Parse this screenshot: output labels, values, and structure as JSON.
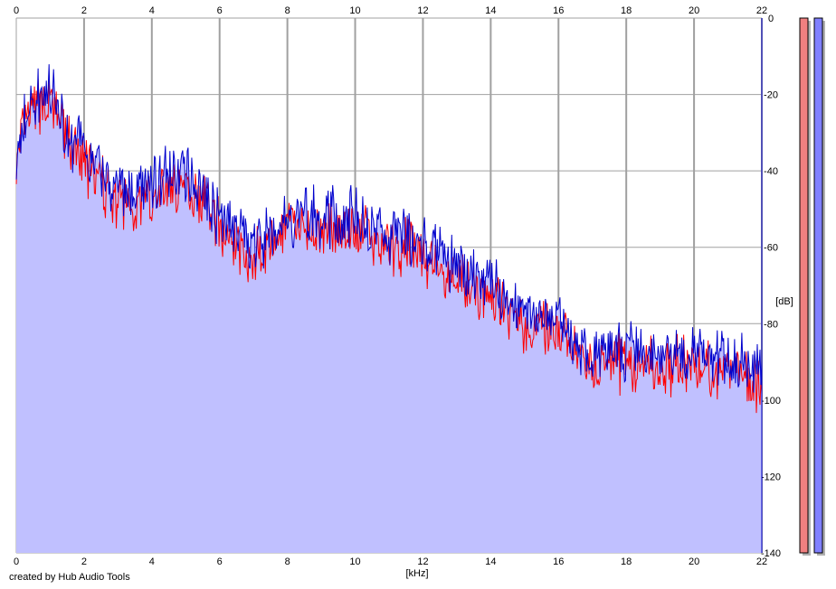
{
  "chart_data": {
    "type": "area",
    "x_unit_label": "[kHz]",
    "y_unit_label": "[dB]",
    "xlim": [
      0,
      22
    ],
    "ylim": [
      -140,
      0
    ],
    "x_ticks": [
      0,
      2,
      4,
      6,
      8,
      10,
      12,
      14,
      16,
      18,
      20,
      22
    ],
    "y_ticks": [
      0,
      -20,
      -40,
      -60,
      -80,
      -100,
      -120,
      -140
    ],
    "grid": true,
    "series": [
      {
        "color": "#ff0000",
        "x": [
          0,
          0.25,
          0.5,
          0.75,
          1,
          1.25,
          1.5,
          1.75,
          2,
          2.5,
          3,
          3.5,
          4,
          4.5,
          5,
          5.5,
          6,
          6.5,
          7,
          7.5,
          8,
          8.5,
          9,
          9.5,
          10,
          10.5,
          11,
          11.5,
          12,
          12.5,
          13,
          13.5,
          14,
          14.5,
          15,
          15.5,
          16,
          16.5,
          17,
          17.5,
          18,
          18.5,
          19,
          19.5,
          20,
          20.5,
          21,
          21.5,
          22
        ],
        "values": [
          -40,
          -28,
          -24,
          -22,
          -23,
          -26,
          -31,
          -36,
          -38,
          -43,
          -48,
          -49,
          -47,
          -44,
          -44,
          -47,
          -54,
          -59,
          -63,
          -60,
          -55,
          -55,
          -56,
          -55,
          -55,
          -58,
          -61,
          -60,
          -62,
          -66,
          -68,
          -70,
          -73,
          -76,
          -80,
          -82,
          -83,
          -87,
          -91,
          -91,
          -90,
          -91,
          -91,
          -91,
          -91,
          -92,
          -92,
          -93,
          -98
        ]
      },
      {
        "color": "#0000cc",
        "x": [
          0,
          0.25,
          0.5,
          0.75,
          1,
          1.25,
          1.5,
          1.75,
          2,
          2.5,
          3,
          3.5,
          4,
          4.5,
          5,
          5.5,
          6,
          6.5,
          7,
          7.5,
          8,
          8.5,
          9,
          9.5,
          10,
          10.5,
          11,
          11.5,
          12,
          12.5,
          13,
          13.5,
          14,
          14.5,
          15,
          15.5,
          16,
          16.5,
          17,
          17.5,
          18,
          18.5,
          19,
          19.5,
          20,
          20.5,
          21,
          21.5,
          22
        ],
        "values": [
          -38,
          -25,
          -22,
          -19,
          -21,
          -24,
          -29,
          -33,
          -35,
          -40,
          -45,
          -46,
          -44,
          -41,
          -41,
          -44,
          -52,
          -56,
          -60,
          -57,
          -52,
          -52,
          -53,
          -52,
          -52,
          -55,
          -58,
          -57,
          -59,
          -63,
          -65,
          -67,
          -70,
          -73,
          -76,
          -79,
          -80,
          -84,
          -87,
          -87,
          -87,
          -88,
          -88,
          -88,
          -88,
          -88,
          -89,
          -89,
          -93
        ]
      }
    ],
    "level_meters": [
      {
        "color": "#f08080",
        "fill": 1.0
      },
      {
        "color": "#8080ff",
        "fill": 1.0
      }
    ],
    "fill_color": "#c0c0ff",
    "grid_color": "#a0a0a0"
  },
  "credit_text": "created by Hub Audio Tools"
}
